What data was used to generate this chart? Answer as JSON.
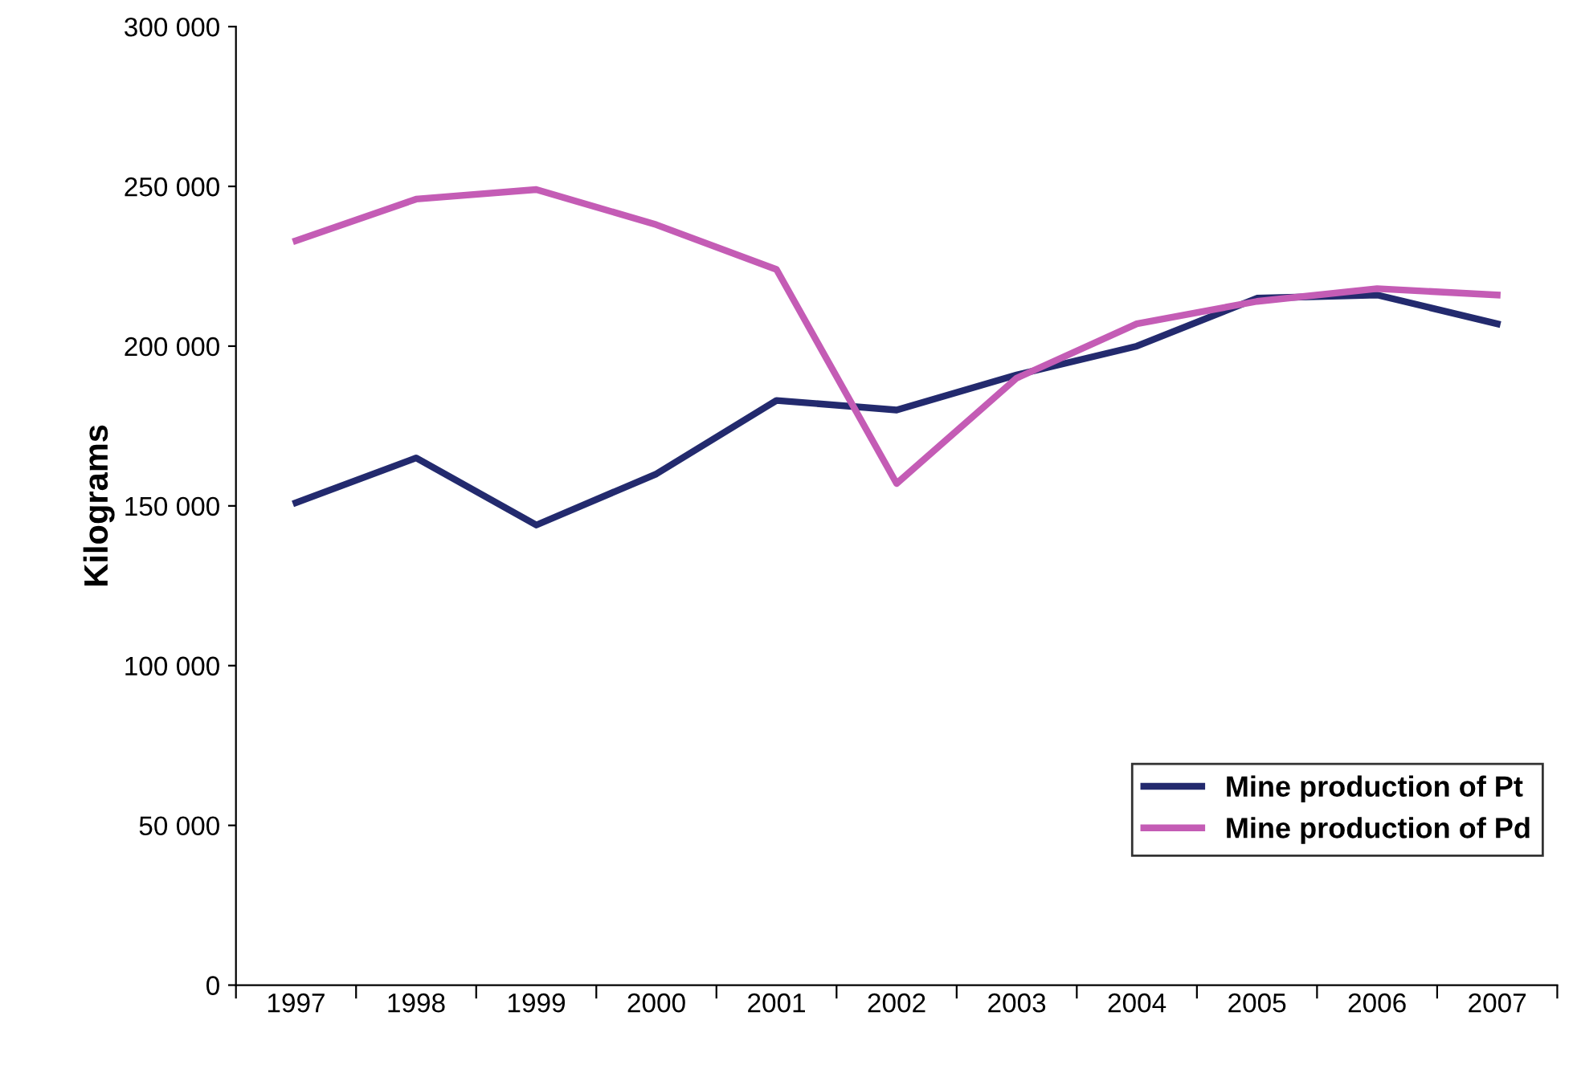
{
  "chart_data": {
    "type": "line",
    "ylabel": "Kilograms",
    "categories": [
      "1997",
      "1998",
      "1999",
      "2000",
      "2001",
      "2002",
      "2003",
      "2004",
      "2005",
      "2006",
      "2007"
    ],
    "series": [
      {
        "name": "Mine production of Pt",
        "color": "#232a6e",
        "values": [
          151000,
          165000,
          144000,
          160000,
          183000,
          180000,
          191000,
          200000,
          215000,
          216000,
          207000
        ]
      },
      {
        "name": "Mine production of Pd",
        "color": "#c45cb5",
        "values": [
          233000,
          246000,
          249000,
          238000,
          224000,
          157000,
          190000,
          207000,
          214000,
          218000,
          216000
        ]
      }
    ],
    "ylim": [
      0,
      300000
    ],
    "yticks": [
      0,
      {
        "value": 50000,
        "label": "50 000"
      },
      {
        "value": 100000,
        "label": "100 000"
      },
      {
        "value": 150000,
        "label": "150 000"
      },
      {
        "value": 200000,
        "label": "200 000"
      },
      {
        "value": 250000,
        "label": "250 000"
      },
      {
        "value": 300000,
        "label": "300 000"
      }
    ],
    "grid": false,
    "legend": "bottom right",
    "marker": "none",
    "line_style": "solid"
  }
}
